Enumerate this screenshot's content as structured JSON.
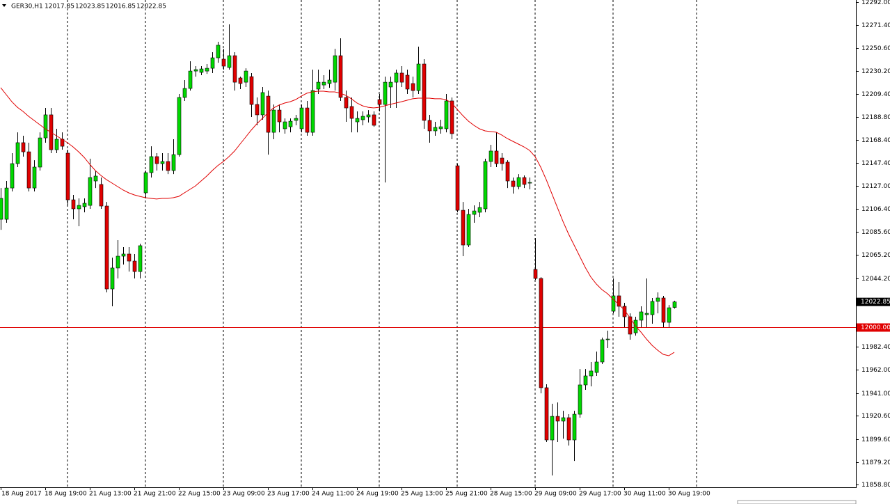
{
  "chart_data": {
    "type": "candlestick",
    "title": "GER30,H1",
    "categories": [
      "18 Aug 2017",
      null,
      null,
      null,
      null,
      null,
      null,
      null,
      "18 Aug 19:00",
      null,
      null,
      null,
      null,
      null,
      null,
      null,
      "21 Aug 13:00",
      null,
      null,
      null,
      null,
      null,
      null,
      null,
      "21 Aug 21:00",
      null,
      null,
      null,
      null,
      null,
      null,
      null,
      "22 Aug 15:00",
      null,
      null,
      null,
      null,
      null,
      null,
      null,
      "23 Aug 09:00",
      null,
      null,
      null,
      null,
      null,
      null,
      null,
      "23 Aug 17:00",
      null,
      null,
      null,
      null,
      null,
      null,
      null,
      "24 Aug 11:00",
      null,
      null,
      null,
      null,
      null,
      null,
      null,
      "24 Aug 19:00",
      null,
      null,
      null,
      null,
      null,
      null,
      null,
      "25 Aug 13:00",
      null,
      null,
      null,
      null,
      null,
      null,
      null,
      "25 Aug 21:00",
      null,
      null,
      null,
      null,
      null,
      null,
      null,
      "28 Aug 15:00",
      null,
      null,
      null,
      null,
      null,
      null,
      null,
      "29 Aug 09:00",
      null,
      null,
      null,
      null,
      null,
      null,
      null,
      "29 Aug 17:00",
      null,
      null,
      null,
      null,
      null,
      null,
      null,
      "30 Aug 11:00",
      null,
      null,
      null,
      null,
      null,
      null,
      null,
      "30 Aug 19:00",
      null
    ],
    "open": [
      12097.0,
      12097.0,
      12125.1,
      12147.0,
      12165.8,
      12157.6,
      12125.1,
      12143.9,
      12170.1,
      12190.8,
      12159.5,
      12168.9,
      12156.4,
      12114.5,
      12106.4,
      12108.3,
      12109.5,
      12131.4,
      12128.3,
      12108.9,
      12034.5,
      12053.3,
      12063.9,
      12065.8,
      12059.5,
      12050.1,
      12120.8,
      12138.9,
      12153.3,
      12147.0,
      12148.9,
      12140.8,
      12155.1,
      12206.4,
      12214.5,
      12230.1,
      12228.9,
      12230.1,
      12232.6,
      12242.0,
      12240.8,
      12233.3,
      12243.9,
      12223.9,
      12220.1,
      12225.1,
      12200.1,
      12190.8,
      12207.6,
      12175.1,
      12195.1,
      12178.3,
      12180.1,
      12185.8,
      12178.3,
      12197.0,
      12175.1,
      12213.9,
      12217.6,
      12218.9,
      12220.1,
      12243.9,
      12206.4,
      12198.3,
      12184.5,
      12186.4,
      12188.9,
      12190.8,
      12204.5,
      12200.1,
      12215.8,
      12220.1,
      12228.3,
      12226.4,
      12218.9,
      12212.6,
      12236.4,
      12185.8,
      12176.4,
      12178.3,
      12178.3,
      12203.3,
      12145.1,
      12105.1,
      12073.9,
      12101.4,
      12103.3,
      12106.4,
      12148.9,
      12158.3,
      12152.0,
      12148.3,
      12131.4,
      12126.4,
      12134.5,
      12129.5,
      12052.0,
      12043.9,
      11945.8,
      11898.9,
      11920.1,
      11915.8,
      11918.9,
      11898.9,
      11922.0,
      11948.3,
      11956.4,
      11959.5,
      11968.9,
      11988.9,
      12014.5,
      12028.3,
      12018.9,
      12009.5,
      11995.1,
      12006.4,
      12011.4,
      12011.4,
      12023.3,
      12026.4,
      12004.5,
      12017.85
    ],
    "high": [
      12125.1,
      12131.4,
      12156.4,
      12175.1,
      12172.0,
      12165.8,
      12150.1,
      12175.1,
      12197.0,
      12197.0,
      12178.3,
      12175.1,
      12159.5,
      12118.9,
      12115.8,
      12115.8,
      12151.4,
      12140.8,
      12134.5,
      12112.6,
      12062.6,
      12078.3,
      12072.0,
      12072.0,
      12065.8,
      12075.1,
      12140.8,
      12162.6,
      12156.4,
      12156.4,
      12156.4,
      12168.9,
      12209.5,
      12222.0,
      12238.9,
      12234.5,
      12234.5,
      12236.4,
      12247.0,
      12256.4,
      12250.1,
      12272.0,
      12247.0,
      12225.1,
      12232.6,
      12228.3,
      12206.4,
      12215.8,
      12212.6,
      12200.1,
      12200.1,
      12187.6,
      12187.6,
      12190.8,
      12200.1,
      12203.3,
      12231.4,
      12231.4,
      12226.4,
      12231.4,
      12250.1,
      12259.5,
      12212.6,
      12206.4,
      12193.9,
      12193.9,
      12195.1,
      12193.9,
      12209.5,
      12225.1,
      12225.1,
      12231.4,
      12234.5,
      12231.4,
      12225.1,
      12252.0,
      12240.8,
      12190.8,
      12184.5,
      12186.4,
      12209.5,
      12206.4,
      12147.0,
      12112.6,
      12106.4,
      12109.5,
      12112.6,
      12151.4,
      12163.9,
      12175.1,
      12156.4,
      12150.1,
      12134.5,
      12137.6,
      12136.4,
      12134.5,
      12080.1,
      12045.1,
      11948.9,
      11931.4,
      11932.6,
      11925.1,
      11922.0,
      11925.1,
      11962.6,
      11962.6,
      11968.9,
      11978.3,
      11990.8,
      11997.0,
      12043.9,
      12040.8,
      12022.0,
      12012.6,
      12009.5,
      12018.9,
      12043.9,
      12026.4,
      12031.4,
      12028.3,
      12020.1,
      12023.85
    ],
    "low": [
      12087.6,
      12093.9,
      12122.0,
      12143.9,
      12153.3,
      12122.0,
      12122.0,
      12140.8,
      12165.8,
      12156.4,
      12156.4,
      12159.5,
      12109.5,
      12097.0,
      12090.8,
      12103.3,
      12106.4,
      12125.1,
      12106.4,
      12031.4,
      12018.9,
      12043.9,
      12056.4,
      12050.1,
      12043.9,
      12043.9,
      12115.8,
      12134.5,
      12140.8,
      12140.8,
      12137.6,
      12137.6,
      12153.3,
      12203.3,
      12212.6,
      12225.1,
      12226.4,
      12227.6,
      12228.3,
      12237.6,
      12231.4,
      12231.4,
      12212.6,
      12213.9,
      12215.8,
      12188.9,
      12181.4,
      12186.4,
      12155.1,
      12168.9,
      12175.1,
      12173.9,
      12175.1,
      12181.4,
      12175.1,
      12172.0,
      12172.0,
      12209.5,
      12213.9,
      12215.1,
      12212.6,
      12203.3,
      12184.5,
      12175.1,
      12175.1,
      12181.4,
      12183.9,
      12180.1,
      12193.9,
      12130.1,
      12197.0,
      12197.0,
      12215.8,
      12209.5,
      12206.4,
      12209.5,
      12178.3,
      12165.8,
      12172.0,
      12173.9,
      12175.1,
      12168.9,
      12103.3,
      12063.9,
      12072.0,
      12093.9,
      12098.9,
      12103.3,
      12143.9,
      12143.9,
      12140.8,
      12125.1,
      12120.1,
      12123.9,
      12125.1,
      12123.9,
      12042.6,
      11940.8,
      11897.0,
      11867.0,
      11897.0,
      11900.1,
      11893.9,
      11880.1,
      11918.9,
      11943.9,
      11947.0,
      11956.4,
      11967.0,
      11981.4,
      12012.6,
      12009.5,
      12000.1,
      11988.9,
      11992.6,
      12000.1,
      12000.1,
      12003.3,
      12012.6,
      12000.1,
      12000.1,
      12016.85
    ],
    "close": [
      12115.8,
      12125.1,
      12147.0,
      12165.8,
      12157.6,
      12125.1,
      12143.9,
      12170.1,
      12190.8,
      12159.5,
      12168.9,
      12162.6,
      12114.5,
      12106.4,
      12109.5,
      12111.4,
      12134.5,
      12135.8,
      12108.9,
      12034.5,
      12053.3,
      12063.9,
      12065.8,
      12059.5,
      12050.1,
      12073.3,
      12138.9,
      12153.3,
      12147.0,
      12148.9,
      12140.8,
      12155.1,
      12206.4,
      12214.5,
      12230.1,
      12231.4,
      12232.0,
      12232.6,
      12242.0,
      12253.3,
      12234.5,
      12243.9,
      12220.1,
      12218.9,
      12230.1,
      12200.1,
      12190.8,
      12210.8,
      12175.1,
      12195.1,
      12184.5,
      12184.5,
      12185.1,
      12187.6,
      12197.0,
      12175.1,
      12212.6,
      12220.1,
      12220.1,
      12222.0,
      12243.9,
      12206.4,
      12197.0,
      12187.6,
      12187.6,
      12189.5,
      12190.8,
      12181.4,
      12200.1,
      12220.1,
      12220.1,
      12228.3,
      12220.1,
      12213.9,
      12212.6,
      12236.4,
      12185.8,
      12176.4,
      12179.5,
      12180.1,
      12203.3,
      12173.9,
      12105.1,
      12073.9,
      12101.4,
      12104.5,
      12107.6,
      12148.9,
      12158.3,
      12147.0,
      12147.0,
      12131.4,
      12126.4,
      12134.5,
      12128.3,
      12130.1,
      12043.9,
      11945.8,
      11898.9,
      11920.1,
      11915.8,
      11918.9,
      11898.9,
      11922.0,
      11948.3,
      11956.4,
      11960.8,
      11968.9,
      11988.9,
      11989.5,
      12028.3,
      12018.9,
      12009.5,
      11993.9,
      12006.4,
      12013.9,
      12012.6,
      12023.3,
      12026.4,
      12004.5,
      12017.6,
      12022.85
    ],
    "up_color": "#00d800",
    "down_color": "#e00000",
    "wick_color": "#000000",
    "moving_average": {
      "color": "#e00000",
      "values": [
        12215.2,
        12208.9,
        12202.6,
        12197.6,
        12193.9,
        12189.5,
        12185.8,
        12182.0,
        12178.3,
        12175.2,
        12172.0,
        12168.9,
        12165.8,
        12162.0,
        12157.6,
        12152.6,
        12146.4,
        12140.8,
        12136.4,
        12132.6,
        12129.5,
        12126.4,
        12123.3,
        12120.8,
        12118.9,
        12117.6,
        12116.4,
        12115.8,
        12115.2,
        12115.8,
        12115.8,
        12116.4,
        12117.6,
        12120.8,
        12123.9,
        12127.0,
        12131.4,
        12135.8,
        12140.8,
        12145.2,
        12148.9,
        12153.3,
        12158.3,
        12164.5,
        12170.8,
        12177.0,
        12182.7,
        12187.6,
        12192.6,
        12197.0,
        12199.5,
        12201.4,
        12202.6,
        12204.5,
        12207.6,
        12210.2,
        12211.4,
        12212.0,
        12212.0,
        12211.4,
        12211.4,
        12210.2,
        12208.3,
        12205.2,
        12201.4,
        12198.9,
        12197.6,
        12197.0,
        12197.6,
        12198.9,
        12200.2,
        12201.4,
        12202.6,
        12203.9,
        12205.2,
        12205.8,
        12205.8,
        12205.8,
        12205.2,
        12205.2,
        12204.5,
        12201.4,
        12195.8,
        12190.2,
        12185.2,
        12181.4,
        12178.3,
        12176.4,
        12175.8,
        12175.2,
        12172.7,
        12169.5,
        12167.0,
        12164.5,
        12162.0,
        12158.9,
        12153.3,
        12143.9,
        12132.6,
        12120.1,
        12107.6,
        12095.2,
        12083.9,
        12073.9,
        12063.9,
        12053.9,
        12045.2,
        12038.9,
        12033.9,
        12030.2,
        12025.2,
        12020.8,
        12015.8,
        12008.9,
        12001.4,
        11995.8,
        11989.5,
        11983.9,
        11979.5,
        11975.8,
        11974.5,
        11977.6
      ]
    },
    "hline": {
      "value": 12000,
      "label": "12000.00",
      "color": "#e00000"
    },
    "ylim": [
      11856.4,
      12293.9
    ],
    "yticks": [
      {
        "value": 12292,
        "label": "12292.00"
      },
      {
        "value": 12271.4,
        "label": "12271.40"
      },
      {
        "value": 12250.6,
        "label": "12250.60"
      },
      {
        "value": 12230.2,
        "label": "12230.20"
      },
      {
        "value": 12209.4,
        "label": "12209.40"
      },
      {
        "value": 12188.8,
        "label": "12188.80"
      },
      {
        "value": 12168.4,
        "label": "12168.40"
      },
      {
        "value": 12147.4,
        "label": "12147.40"
      },
      {
        "value": 12127,
        "label": "12127.00"
      },
      {
        "value": 12106.4,
        "label": "12106.40"
      },
      {
        "value": 12085.6,
        "label": "12085.60"
      },
      {
        "value": 12065.2,
        "label": "12065.20"
      },
      {
        "value": 12044.2,
        "label": "12044.20"
      },
      {
        "value": 11982.4,
        "label": "11982.40"
      },
      {
        "value": 11962,
        "label": "11962.00"
      },
      {
        "value": 11941,
        "label": "11941.00"
      },
      {
        "value": 11920.6,
        "label": "11920.60"
      },
      {
        "value": 11899.6,
        "label": "11899.60"
      },
      {
        "value": 11879.2,
        "label": "11879.20"
      },
      {
        "value": 11858.8,
        "label": "11858.80"
      }
    ]
  }
}
